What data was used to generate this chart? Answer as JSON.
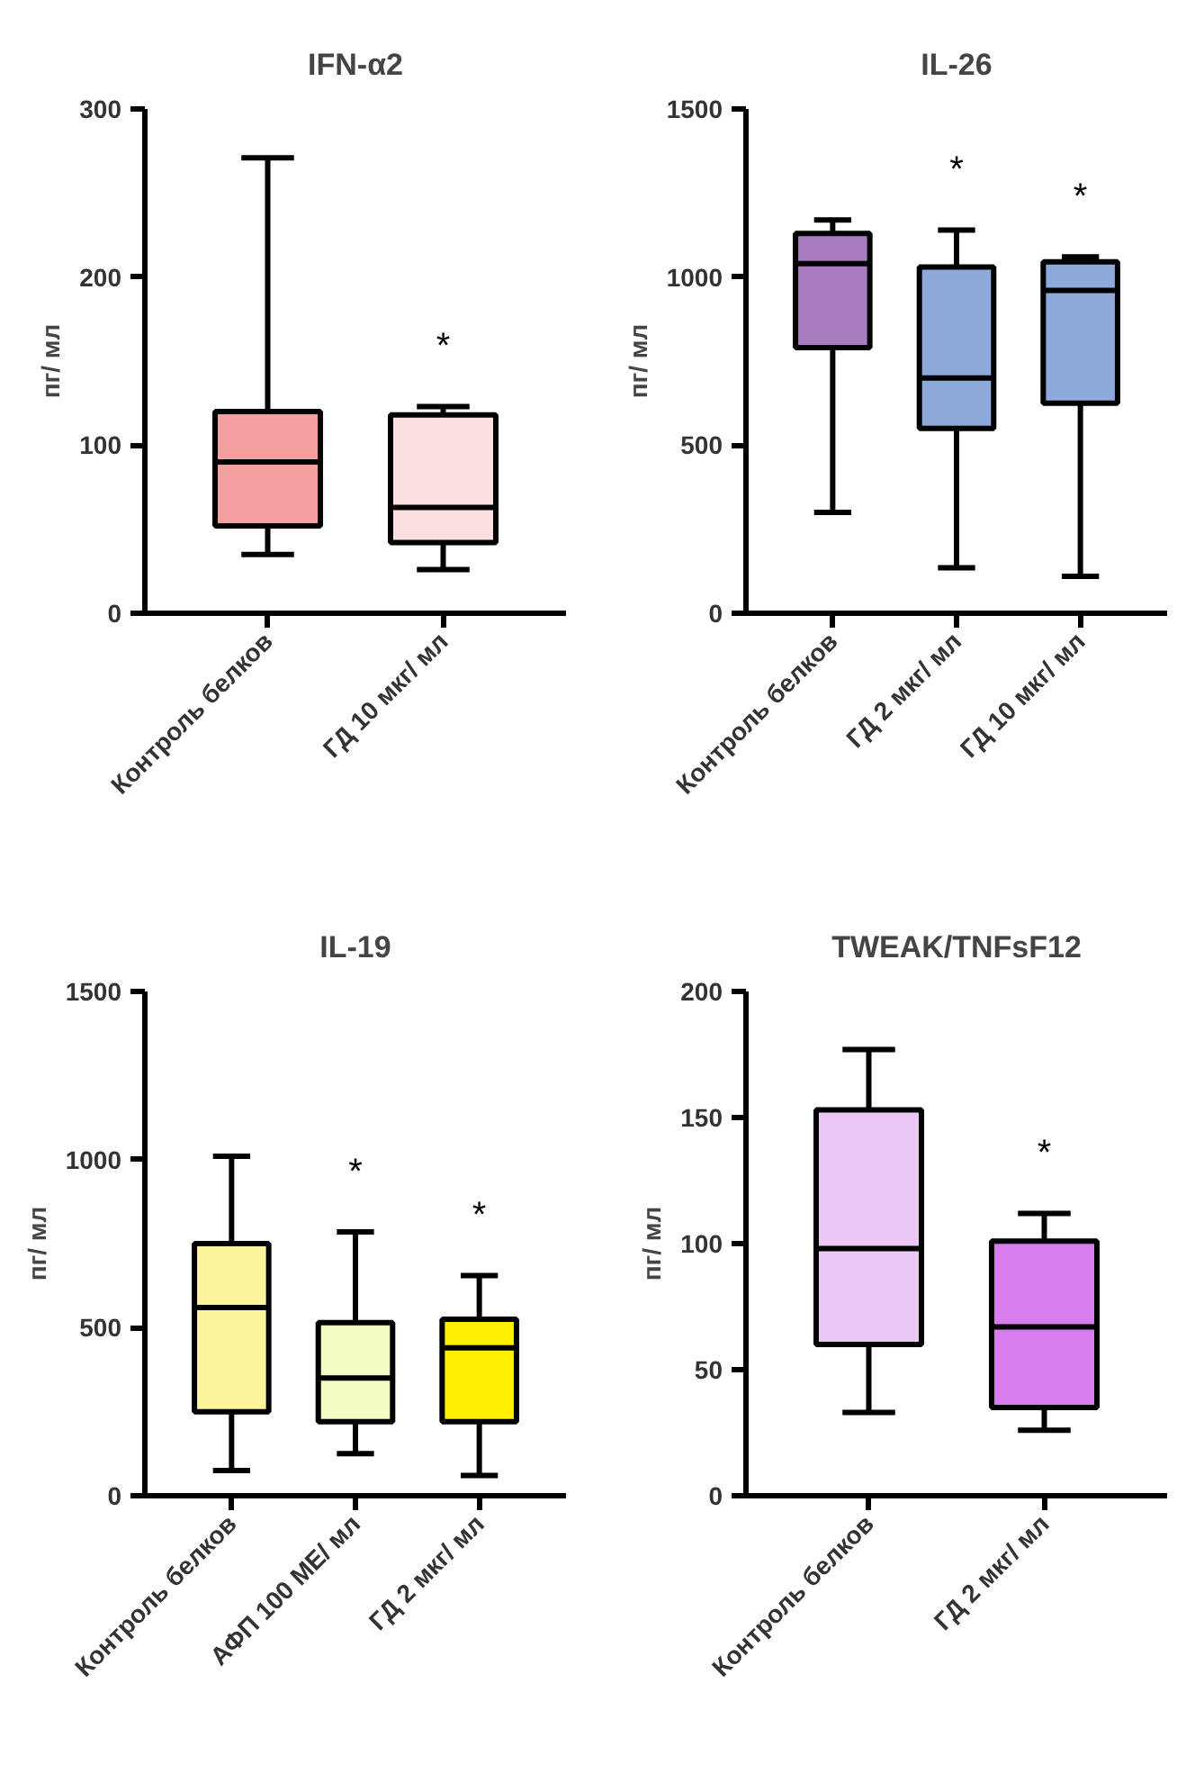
{
  "chart_data": [
    {
      "type": "box",
      "title": "IFN-α2",
      "ylabel": "пг/ мл",
      "categories": [
        "Контроль белков",
        "ГД 10 мкг/ мл"
      ],
      "colors": [
        "#f4a0a0",
        "#fde0e0"
      ],
      "ylim": [
        0,
        300
      ],
      "yticks": [
        0,
        100,
        200,
        300
      ],
      "grid": false,
      "boxes": [
        {
          "low": 35,
          "q1": 52,
          "median": 90,
          "q3": 120,
          "high": 271
        },
        {
          "low": 26,
          "q1": 42,
          "median": 63,
          "q3": 118,
          "high": 123
        }
      ],
      "annotations": [
        "*"
      ]
    },
    {
      "type": "box",
      "title": "IL-26",
      "ylabel": "пг/ мл",
      "categories": [
        "Контроль белков",
        "ГД 2 мкг/ мл",
        "ГД 10 мкг/ мл"
      ],
      "colors": [
        "#a97bbf",
        "#8eaadb",
        "#8eaadb"
      ],
      "ylim": [
        0,
        1500
      ],
      "yticks": [
        0,
        500,
        1000,
        1500
      ],
      "grid": false,
      "boxes": [
        {
          "low": 300,
          "q1": 790,
          "median": 1040,
          "q3": 1130,
          "high": 1170
        },
        {
          "low": 135,
          "q1": 550,
          "median": 700,
          "q3": 1030,
          "high": 1140
        },
        {
          "low": 110,
          "q1": 625,
          "median": 960,
          "q3": 1045,
          "high": 1060
        }
      ],
      "annotations": [
        "*",
        "*"
      ]
    },
    {
      "type": "box",
      "title": "IL-19",
      "ylabel": "пг/ мл",
      "categories": [
        "Контроль белков",
        "АФП 100 МЕ/ мл",
        "ГД 2 мкг/ мл"
      ],
      "colors": [
        "#fdf59b",
        "#f6fac4",
        "#ffef00"
      ],
      "ylim": [
        0,
        1500
      ],
      "yticks": [
        0,
        500,
        1000,
        1500
      ],
      "grid": false,
      "boxes": [
        {
          "low": 75,
          "q1": 250,
          "median": 560,
          "q3": 750,
          "high": 1010
        },
        {
          "low": 125,
          "q1": 220,
          "median": 350,
          "q3": 515,
          "high": 785
        },
        {
          "low": 60,
          "q1": 220,
          "median": 440,
          "q3": 525,
          "high": 655
        }
      ],
      "annotations": [
        "*",
        "*"
      ]
    },
    {
      "type": "box",
      "title": "TWEAK/TNFsF12",
      "ylabel": "пг/ мл",
      "categories": [
        "Контроль белков",
        "ГД 2 мкг/ мл"
      ],
      "colors": [
        "#ecc8f4",
        "#d77ded"
      ],
      "ylim": [
        0,
        200
      ],
      "yticks": [
        0,
        50,
        100,
        150,
        200
      ],
      "grid": false,
      "boxes": [
        {
          "low": 33,
          "q1": 60,
          "median": 98,
          "q3": 153,
          "high": 177
        },
        {
          "low": 26,
          "q1": 35,
          "median": 67,
          "q3": 101,
          "high": 112
        }
      ],
      "annotations": [
        "*"
      ]
    }
  ]
}
